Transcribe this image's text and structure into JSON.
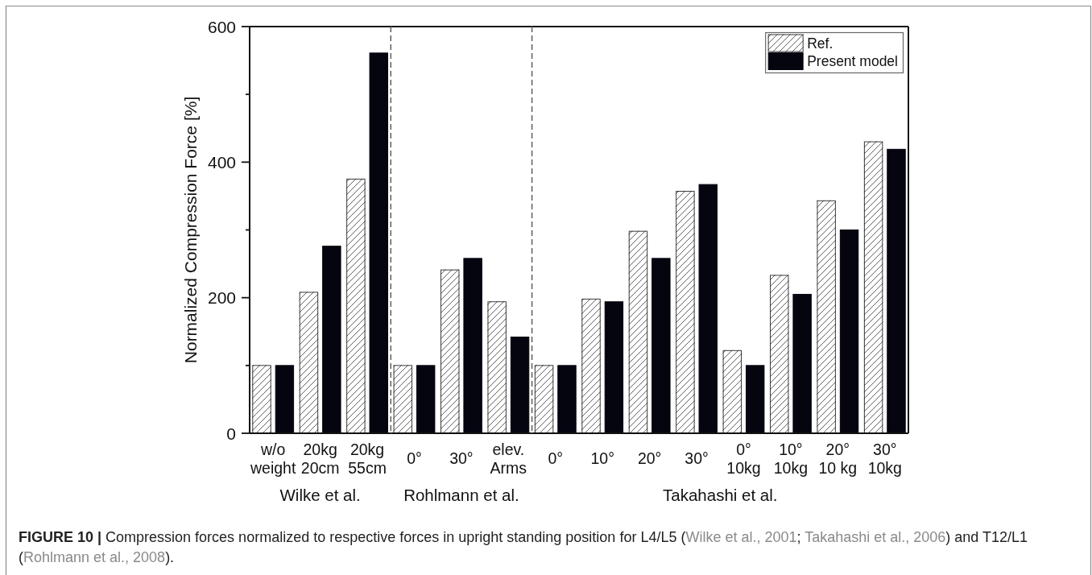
{
  "chart_data": [
    {
      "type": "bar",
      "categories": [
        "w/o\nweight",
        "20kg\n20cm",
        "20kg\n55cm"
      ],
      "series": [
        {
          "color": "#ffffff",
          "values": [
            100,
            208,
            375
          ]
        },
        {
          "color": "#050510",
          "values": [
            100,
            276,
            561
          ]
        }
      ],
      "xlabel": "Wilke et al.",
      "ylabel": "Normalized Compression Force [%]",
      "ylim": [
        0,
        600
      ],
      "yticks": [
        0,
        {
          "value": 100,
          "label": null
        },
        200,
        {
          "value": 300,
          "label": null
        },
        400,
        {
          "value": 500,
          "label": null
        },
        600
      ],
      "annotations": [
        "FIGURE 10 | Compression forces normalized to respective forces in upright standing position for L4/L5 (Wilke et al., 2001; Takahashi et al., 2006) and T12/L1 (Rohlmann et al., 2008)."
      ]
    },
    {
      "type": "bar",
      "categories": [
        "0°",
        "30°",
        "elev.\nArms"
      ],
      "series": [
        {
          "color": "#ffffff",
          "values": [
            100,
            241,
            194
          ]
        },
        {
          "color": "#050510",
          "values": [
            100,
            258,
            142
          ]
        }
      ],
      "xlabel": "Rohlmann et al.",
      "ylim": [
        0,
        600
      ],
      "tick_labels": "x"
    },
    {
      "type": "bar",
      "categories": [
        "0°",
        "10°",
        "20°",
        "30°",
        "0°\n10kg",
        "10°\n10kg",
        "20°\n10 kg",
        "30°\n10kg"
      ],
      "series": [
        {
          "name": "Ref.",
          "color": "#ffffff",
          "values": [
            100,
            198,
            298,
            357,
            122,
            233,
            343,
            430
          ]
        },
        {
          "name": "Present model",
          "color": "#050510",
          "values": [
            100,
            194,
            258,
            367,
            100,
            205,
            300,
            419
          ]
        }
      ],
      "xlabel": "Takahashi et al.",
      "ylim": [
        0,
        600
      ],
      "tick_labels": "x",
      "legend": "top right"
    }
  ]
}
